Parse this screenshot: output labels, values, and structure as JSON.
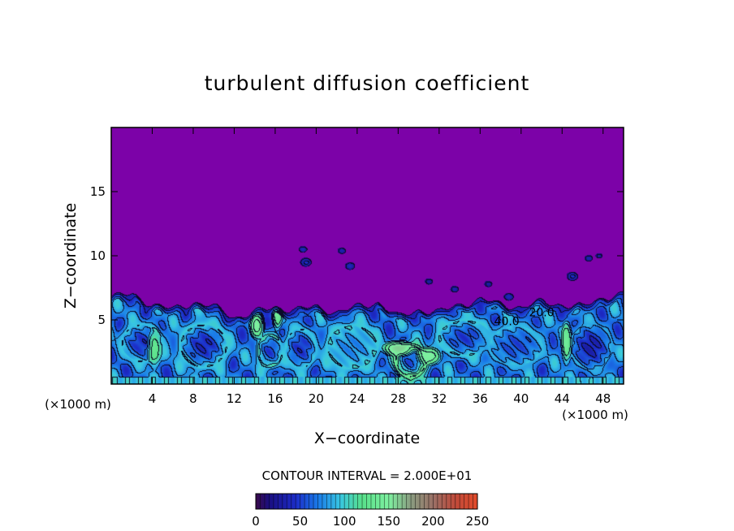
{
  "chart_data": {
    "type": "heatmap",
    "title": "turbulent diffusion coefficient",
    "xlabel": "X−coordinate",
    "ylabel": "Z−coordinate",
    "x_unit": "(×1000 m)",
    "y_unit": "(×1000 m)",
    "xlim": [
      0,
      50
    ],
    "ylim": [
      0,
      20
    ],
    "x_ticks": [
      4,
      8,
      12,
      16,
      20,
      24,
      28,
      32,
      36,
      40,
      44,
      48
    ],
    "x_tick_labels": [
      "4",
      "8",
      "12",
      "16",
      "20",
      "24",
      "28",
      "32",
      "36",
      "40",
      "44",
      "48"
    ],
    "y_ticks": [
      5,
      10,
      15
    ],
    "y_tick_labels": [
      "5",
      "10",
      "15"
    ],
    "contour_interval_text": "CONTOUR INTERVAL = 2.000E+01",
    "contour_interval": 20,
    "contour_labels": [
      {
        "text": "40.0",
        "x": 38.6,
        "z": 4.9
      },
      {
        "text": "20.0",
        "x": 42.0,
        "z": 5.6
      }
    ],
    "colorbar": {
      "min": 0,
      "max": 250,
      "tick_values": [
        0,
        50,
        100,
        150,
        200,
        250
      ],
      "tick_labels": [
        "0",
        "50",
        "100",
        "150",
        "200",
        "250"
      ],
      "stops": [
        {
          "value": 0,
          "color": "#3a0a4a"
        },
        {
          "value": 15,
          "color": "#1a0e80"
        },
        {
          "value": 45,
          "color": "#1c2cc8"
        },
        {
          "value": 70,
          "color": "#1a7ae8"
        },
        {
          "value": 95,
          "color": "#38c6e2"
        },
        {
          "value": 120,
          "color": "#58e08a"
        },
        {
          "value": 150,
          "color": "#7ef0a0"
        },
        {
          "value": 175,
          "color": "#8a9c80"
        },
        {
          "value": 200,
          "color": "#9a7066"
        },
        {
          "value": 225,
          "color": "#c04a3a"
        },
        {
          "value": 250,
          "color": "#e24a2a"
        }
      ]
    },
    "field": {
      "background_value": 5,
      "boundary_layer_top_km": [
        [
          0,
          6.8
        ],
        [
          2,
          7.0
        ],
        [
          4,
          6.2
        ],
        [
          6,
          5.8
        ],
        [
          8,
          6.4
        ],
        [
          10,
          6.0
        ],
        [
          12,
          5.2
        ],
        [
          14,
          5.6
        ],
        [
          16,
          6.0
        ],
        [
          18,
          5.8
        ],
        [
          20,
          6.0
        ],
        [
          22,
          5.6
        ],
        [
          24,
          6.0
        ],
        [
          26,
          6.4
        ],
        [
          28,
          5.2
        ],
        [
          30,
          5.8
        ],
        [
          32,
          5.6
        ],
        [
          34,
          6.2
        ],
        [
          36,
          6.6
        ],
        [
          38,
          6.2
        ],
        [
          40,
          6.0
        ],
        [
          42,
          6.4
        ],
        [
          44,
          6.2
        ],
        [
          46,
          6.0
        ],
        [
          48,
          6.8
        ],
        [
          50,
          7.0
        ]
      ],
      "eddies": [
        {
          "x": 3.0,
          "z": 3.2,
          "rx": 2.6,
          "rz": 1.9,
          "core": 45,
          "rim": 95
        },
        {
          "x": 9.0,
          "z": 3.0,
          "rx": 3.0,
          "rz": 2.2,
          "core": 40,
          "rim": 100
        },
        {
          "x": 15.5,
          "z": 2.6,
          "rx": 1.6,
          "rz": 1.6,
          "core": 50,
          "rim": 110
        },
        {
          "x": 18.5,
          "z": 2.8,
          "rx": 2.0,
          "rz": 2.0,
          "core": 45,
          "rim": 95
        },
        {
          "x": 23.5,
          "z": 2.9,
          "rx": 3.2,
          "rz": 2.2,
          "core": 75,
          "rim": 100
        },
        {
          "x": 29.2,
          "z": 1.8,
          "rx": 2.0,
          "rz": 1.6,
          "core": 55,
          "rim": 140
        },
        {
          "x": 34.5,
          "z": 3.6,
          "rx": 3.4,
          "rz": 1.8,
          "core": 50,
          "rim": 100
        },
        {
          "x": 39.5,
          "z": 3.0,
          "rx": 3.4,
          "rz": 2.0,
          "core": 55,
          "rim": 90
        },
        {
          "x": 46.8,
          "z": 2.9,
          "rx": 2.6,
          "rz": 2.3,
          "core": 35,
          "rim": 85
        }
      ],
      "filaments": [
        {
          "x": 4.2,
          "z": 2.8,
          "rx": 0.8,
          "rz": 1.8,
          "value": 130
        },
        {
          "x": 14.2,
          "z": 4.6,
          "rx": 0.8,
          "rz": 1.2,
          "value": 150
        },
        {
          "x": 16.2,
          "z": 5.6,
          "rx": 0.6,
          "rz": 1.6,
          "value": 140
        },
        {
          "x": 28.0,
          "z": 2.8,
          "rx": 1.8,
          "rz": 0.7,
          "value": 160
        },
        {
          "x": 31.0,
          "z": 2.2,
          "rx": 1.4,
          "rz": 0.8,
          "value": 150
        },
        {
          "x": 44.4,
          "z": 3.2,
          "rx": 0.6,
          "rz": 2.0,
          "value": 140
        }
      ],
      "blobs": [
        {
          "x": 18.7,
          "z": 10.5,
          "r": 0.3,
          "value": 40
        },
        {
          "x": 19.0,
          "z": 9.5,
          "r": 0.4,
          "value": 45
        },
        {
          "x": 22.5,
          "z": 10.4,
          "r": 0.3,
          "value": 35
        },
        {
          "x": 23.3,
          "z": 9.2,
          "r": 0.35,
          "value": 40
        },
        {
          "x": 31.0,
          "z": 8.0,
          "r": 0.3,
          "value": 30
        },
        {
          "x": 33.5,
          "z": 7.4,
          "r": 0.3,
          "value": 35
        },
        {
          "x": 36.8,
          "z": 7.8,
          "r": 0.3,
          "value": 30
        },
        {
          "x": 38.8,
          "z": 6.8,
          "r": 0.35,
          "value": 40
        },
        {
          "x": 45.0,
          "z": 8.4,
          "r": 0.4,
          "value": 45
        },
        {
          "x": 46.6,
          "z": 9.8,
          "r": 0.3,
          "value": 35
        },
        {
          "x": 47.6,
          "z": 10.0,
          "r": 0.25,
          "value": 30
        }
      ]
    }
  }
}
